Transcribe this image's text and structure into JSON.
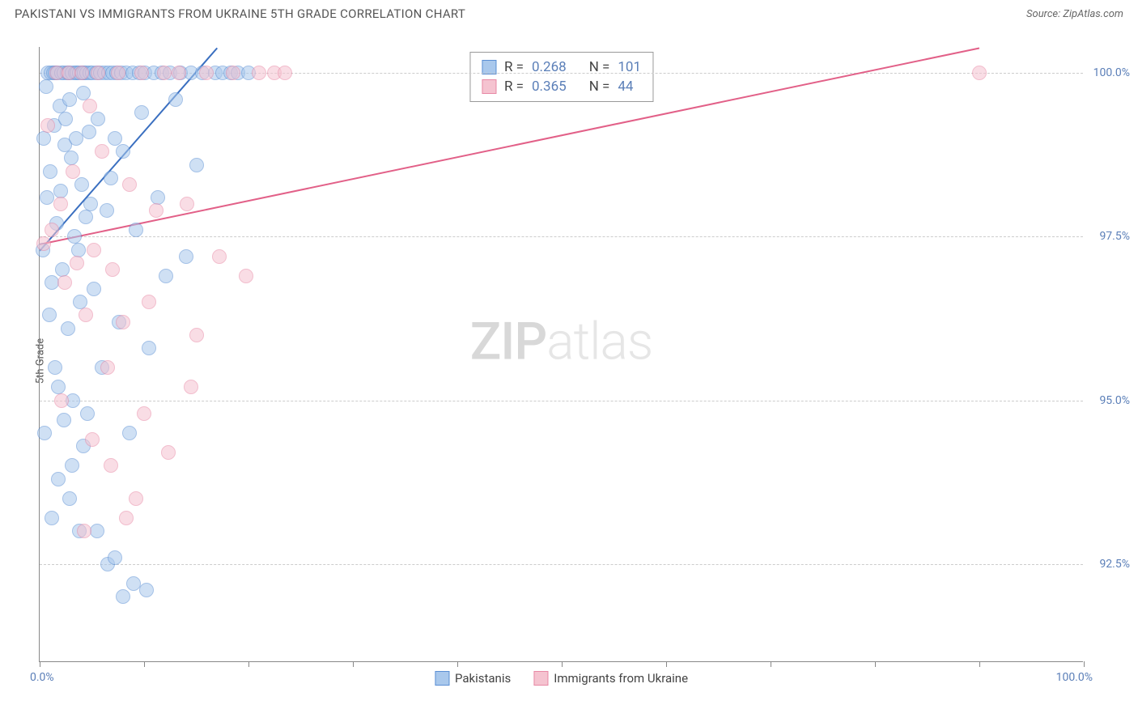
{
  "header": {
    "title": "PAKISTANI VS IMMIGRANTS FROM UKRAINE 5TH GRADE CORRELATION CHART",
    "source": "Source: ZipAtlas.com"
  },
  "watermark": {
    "bold": "ZIP",
    "light": "atlas"
  },
  "chart": {
    "type": "scatter",
    "background_color": "#ffffff",
    "grid_color": "#cccccc",
    "axis_color": "#888888",
    "text_color": "#555555",
    "value_text_color": "#5b7fb8",
    "marker_radius": 9,
    "marker_opacity": 0.55,
    "yaxis_title": "5th Grade",
    "xlim": [
      0,
      100
    ],
    "ylim": [
      91.0,
      100.4
    ],
    "xtick_positions": [
      0,
      10,
      20,
      30,
      40,
      50,
      60,
      70,
      80,
      90,
      100
    ],
    "xaxis_label_left": "0.0%",
    "xaxis_label_right": "100.0%",
    "ytick_positions": [
      92.5,
      95.0,
      97.5,
      100.0
    ],
    "ytick_labels": [
      "92.5%",
      "95.0%",
      "97.5%",
      "100.0%"
    ],
    "series": [
      {
        "name": "Pakistanis",
        "fill_color": "#a9c8ec",
        "stroke_color": "#5b8fd4",
        "line_color": "#3a6fc0",
        "R": "0.268",
        "N": "101",
        "trend": {
          "x1": 0.0,
          "y1": 97.3,
          "x2": 17.0,
          "y2": 100.4
        },
        "points": [
          [
            0.3,
            97.3
          ],
          [
            0.4,
            99.0
          ],
          [
            0.6,
            99.8
          ],
          [
            0.7,
            98.1
          ],
          [
            0.8,
            100.0
          ],
          [
            0.9,
            96.3
          ],
          [
            1.0,
            98.5
          ],
          [
            1.1,
            100.0
          ],
          [
            1.2,
            96.8
          ],
          [
            1.3,
            100.0
          ],
          [
            1.4,
            99.2
          ],
          [
            1.5,
            100.0
          ],
          [
            1.6,
            97.7
          ],
          [
            1.7,
            100.0
          ],
          [
            1.8,
            95.2
          ],
          [
            1.9,
            99.5
          ],
          [
            2.0,
            98.2
          ],
          [
            2.1,
            100.0
          ],
          [
            2.2,
            97.0
          ],
          [
            2.3,
            100.0
          ],
          [
            2.4,
            98.9
          ],
          [
            2.5,
            99.3
          ],
          [
            2.6,
            100.0
          ],
          [
            2.7,
            96.1
          ],
          [
            2.8,
            100.0
          ],
          [
            2.9,
            99.6
          ],
          [
            3.0,
            98.7
          ],
          [
            3.1,
            100.0
          ],
          [
            3.2,
            95.0
          ],
          [
            3.3,
            97.5
          ],
          [
            3.4,
            100.0
          ],
          [
            3.5,
            99.0
          ],
          [
            3.6,
            100.0
          ],
          [
            3.7,
            97.3
          ],
          [
            3.8,
            100.0
          ],
          [
            3.9,
            96.5
          ],
          [
            4.0,
            98.3
          ],
          [
            4.1,
            100.0
          ],
          [
            4.2,
            99.7
          ],
          [
            4.3,
            100.0
          ],
          [
            4.4,
            97.8
          ],
          [
            4.5,
            100.0
          ],
          [
            4.6,
            94.8
          ],
          [
            4.7,
            99.1
          ],
          [
            4.8,
            100.0
          ],
          [
            4.9,
            98.0
          ],
          [
            5.0,
            100.0
          ],
          [
            5.2,
            96.7
          ],
          [
            5.4,
            100.0
          ],
          [
            5.6,
            99.3
          ],
          [
            5.8,
            100.0
          ],
          [
            6.0,
            95.5
          ],
          [
            6.2,
            100.0
          ],
          [
            6.4,
            97.9
          ],
          [
            6.6,
            100.0
          ],
          [
            6.8,
            98.4
          ],
          [
            7.0,
            100.0
          ],
          [
            7.2,
            99.0
          ],
          [
            7.4,
            100.0
          ],
          [
            7.6,
            96.2
          ],
          [
            7.8,
            100.0
          ],
          [
            8.0,
            98.8
          ],
          [
            8.3,
            100.0
          ],
          [
            8.6,
            94.5
          ],
          [
            8.9,
            100.0
          ],
          [
            9.2,
            97.6
          ],
          [
            9.5,
            100.0
          ],
          [
            9.8,
            99.4
          ],
          [
            10.1,
            100.0
          ],
          [
            10.5,
            95.8
          ],
          [
            10.9,
            100.0
          ],
          [
            11.3,
            98.1
          ],
          [
            11.7,
            100.0
          ],
          [
            12.1,
            96.9
          ],
          [
            12.5,
            100.0
          ],
          [
            13.0,
            99.6
          ],
          [
            13.5,
            100.0
          ],
          [
            14.0,
            97.2
          ],
          [
            14.5,
            100.0
          ],
          [
            15.0,
            98.6
          ],
          [
            15.6,
            100.0
          ],
          [
            16.8,
            100.0
          ],
          [
            17.5,
            100.0
          ],
          [
            18.3,
            100.0
          ],
          [
            19.0,
            100.0
          ],
          [
            20.0,
            100.0
          ],
          [
            5.5,
            93.0
          ],
          [
            6.5,
            92.5
          ],
          [
            7.2,
            92.6
          ],
          [
            8.0,
            92.0
          ],
          [
            9.0,
            92.2
          ],
          [
            10.2,
            92.1
          ],
          [
            1.5,
            95.5
          ],
          [
            2.3,
            94.7
          ],
          [
            3.1,
            94.0
          ],
          [
            4.2,
            94.3
          ],
          [
            1.8,
            93.8
          ],
          [
            2.9,
            93.5
          ],
          [
            0.5,
            94.5
          ],
          [
            1.2,
            93.2
          ],
          [
            3.8,
            93.0
          ]
        ]
      },
      {
        "name": "Immigrants from Ukraine",
        "fill_color": "#f5c3d0",
        "stroke_color": "#e888a5",
        "line_color": "#e26088",
        "R": "0.365",
        "N": "44",
        "trend": {
          "x1": 0.0,
          "y1": 97.4,
          "x2": 90.0,
          "y2": 100.4
        },
        "points": [
          [
            0.4,
            97.4
          ],
          [
            0.8,
            99.2
          ],
          [
            1.2,
            97.6
          ],
          [
            1.6,
            100.0
          ],
          [
            2.0,
            98.0
          ],
          [
            2.4,
            96.8
          ],
          [
            2.8,
            100.0
          ],
          [
            3.2,
            98.5
          ],
          [
            3.6,
            97.1
          ],
          [
            4.0,
            100.0
          ],
          [
            4.4,
            96.3
          ],
          [
            4.8,
            99.5
          ],
          [
            5.2,
            97.3
          ],
          [
            5.6,
            100.0
          ],
          [
            6.0,
            98.8
          ],
          [
            6.5,
            95.5
          ],
          [
            7.0,
            97.0
          ],
          [
            7.5,
            100.0
          ],
          [
            8.0,
            96.2
          ],
          [
            8.6,
            98.3
          ],
          [
            9.2,
            93.5
          ],
          [
            9.8,
            100.0
          ],
          [
            10.5,
            96.5
          ],
          [
            11.2,
            97.9
          ],
          [
            11.9,
            100.0
          ],
          [
            12.3,
            94.2
          ],
          [
            13.3,
            100.0
          ],
          [
            14.1,
            98.0
          ],
          [
            15.0,
            96.0
          ],
          [
            16.0,
            100.0
          ],
          [
            17.2,
            97.2
          ],
          [
            18.5,
            100.0
          ],
          [
            19.8,
            96.9
          ],
          [
            21.0,
            100.0
          ],
          [
            22.5,
            100.0
          ],
          [
            23.5,
            100.0
          ],
          [
            4.3,
            93.0
          ],
          [
            6.8,
            94.0
          ],
          [
            8.3,
            93.2
          ],
          [
            2.1,
            95.0
          ],
          [
            5.0,
            94.4
          ],
          [
            10.0,
            94.8
          ],
          [
            90.0,
            100.0
          ],
          [
            14.5,
            95.2
          ]
        ]
      }
    ],
    "legend": {
      "items": [
        {
          "label": "Pakistanis",
          "fill": "#a9c8ec",
          "stroke": "#5b8fd4"
        },
        {
          "label": "Immigrants from Ukraine",
          "fill": "#f5c3d0",
          "stroke": "#e888a5"
        }
      ]
    }
  }
}
